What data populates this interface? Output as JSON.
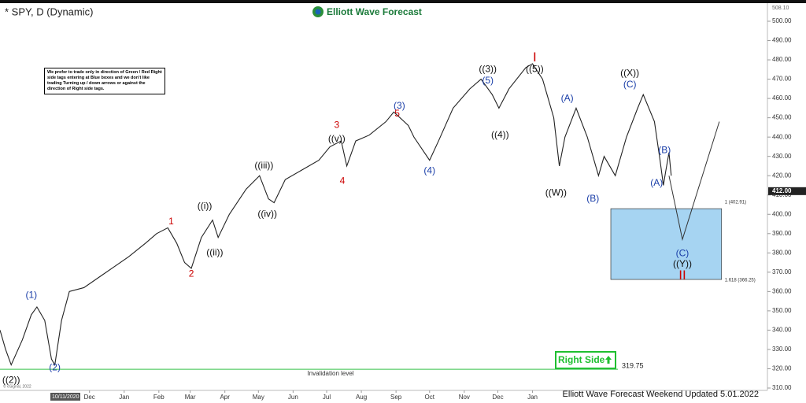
{
  "chart_data": {
    "type": "line",
    "title": "* SPY, D (Dynamic)",
    "brand": "Elliott Wave Forecast",
    "note": "We prefer to trade only in direction of Green / Red Right side tags entering at Blue boxes and we don't like trading Turning up / down arrows or against the direction of Right side tags.",
    "footer": "Elliott Wave Forecast Weekend Updated 5.01.2022",
    "copyright": "© eSignal, 2022",
    "date_badge": "10/11/2020",
    "right_side_tag": "Right Side",
    "xlim": [
      0,
      686
    ],
    "xticks": [
      {
        "value": 80,
        "label": "Dec"
      },
      {
        "value": 111,
        "label": "Jan"
      },
      {
        "value": 142,
        "label": "Feb"
      },
      {
        "value": 170,
        "label": "Mar"
      },
      {
        "value": 201,
        "label": "Apr"
      },
      {
        "value": 231,
        "label": "May"
      },
      {
        "value": 262,
        "label": "Jun"
      },
      {
        "value": 292,
        "label": "Jul"
      },
      {
        "value": 323,
        "label": "Aug"
      },
      {
        "value": 354,
        "label": "Sep"
      },
      {
        "value": 384,
        "label": "Oct"
      },
      {
        "value": 415,
        "label": "Nov"
      },
      {
        "value": 445,
        "label": "Dec"
      },
      {
        "value": 476,
        "label": "Jan"
      }
    ],
    "ylim": [
      310,
      500
    ],
    "yticks": [
      {
        "value": 310,
        "label": "310.00"
      },
      {
        "value": 320,
        "label": "320.00"
      },
      {
        "value": 330,
        "label": "330.00"
      },
      {
        "value": 340,
        "label": "340.00"
      },
      {
        "value": 350,
        "label": "350.00"
      },
      {
        "value": 360,
        "label": "360.00"
      },
      {
        "value": 370,
        "label": "370.00"
      },
      {
        "value": 380,
        "label": "380.00"
      },
      {
        "value": 390,
        "label": "390.00"
      },
      {
        "value": 400,
        "label": "400.00"
      },
      {
        "value": 410,
        "label": "410.00"
      },
      {
        "value": 420,
        "label": "420.00"
      },
      {
        "value": 430,
        "label": "430.00"
      },
      {
        "value": 440,
        "label": "440.00"
      },
      {
        "value": 450,
        "label": "450.00"
      },
      {
        "value": 460,
        "label": "460.00"
      },
      {
        "value": 470,
        "label": "470.00"
      },
      {
        "value": 480,
        "label": "480.00"
      },
      {
        "value": 490,
        "label": "490.00"
      },
      {
        "value": 500,
        "label": "500.00"
      }
    ],
    "top_price": {
      "value": 508.1,
      "label": "508.10"
    },
    "last_price": {
      "value": 412,
      "label": "412.00"
    },
    "series": [
      {
        "name": "SPY",
        "color": "#222222",
        "x": [
          0,
          5,
          10,
          20,
          28,
          33,
          40,
          46,
          49,
          55,
          62,
          75,
          90,
          100,
          115,
          130,
          140,
          150,
          158,
          165,
          171,
          180,
          190,
          195,
          205,
          220,
          232,
          240,
          245,
          255,
          270,
          285,
          295,
          305,
          310,
          318,
          330,
          345,
          352,
          365,
          370,
          384,
          392,
          405,
          420,
          430,
          440,
          446,
          455,
          470,
          476,
          485,
          495,
          500,
          505,
          515,
          525,
          535,
          540,
          550,
          560,
          570,
          575,
          585,
          590,
          593,
          595,
          598,
          600
        ],
        "values": [
          340,
          330,
          322,
          335,
          348,
          352,
          345,
          325,
          322,
          345,
          360,
          362,
          368,
          372,
          378,
          385,
          390,
          393,
          385,
          375,
          372,
          388,
          397,
          388,
          400,
          413,
          420,
          408,
          406,
          418,
          423,
          428,
          435,
          438,
          425,
          438,
          441,
          448,
          453,
          446,
          440,
          428,
          438,
          455,
          465,
          470,
          462,
          455,
          465,
          476,
          478,
          470,
          450,
          425,
          440,
          455,
          440,
          420,
          430,
          420,
          440,
          455,
          462,
          448,
          428,
          415,
          422,
          432,
          420
        ]
      }
    ],
    "projection": {
      "x": [
        598,
        610,
        643
      ],
      "values": [
        420,
        387,
        448
      ]
    },
    "blue_box": {
      "x": [
        546,
        645
      ],
      "top": {
        "value": 402.91,
        "label": "1 (402.91)"
      },
      "bottom": {
        "value": 366.25,
        "label": "1.618 (366.25)"
      }
    },
    "invalidation": {
      "value": 319.75,
      "label": "319.75",
      "text": "Invalidation level"
    },
    "wave_labels": [
      {
        "text": "((2))",
        "x": 10,
        "y": 314,
        "color": "#111111"
      },
      {
        "text": "(2)",
        "x": 49,
        "y": 320.5,
        "color": "#1a3ea8"
      },
      {
        "text": "(1)",
        "x": 28,
        "y": 358,
        "color": "#1a3ea8"
      },
      {
        "text": "1",
        "x": 153,
        "y": 396,
        "color": "#cc0000"
      },
      {
        "text": "2",
        "x": 171,
        "y": 369,
        "color": "#cc0000"
      },
      {
        "text": "((i))",
        "x": 183,
        "y": 404,
        "color": "#111111"
      },
      {
        "text": "((ii))",
        "x": 192,
        "y": 380,
        "color": "#111111"
      },
      {
        "text": "((iii))",
        "x": 236,
        "y": 425,
        "color": "#111111"
      },
      {
        "text": "((iv))",
        "x": 239,
        "y": 400,
        "color": "#111111"
      },
      {
        "text": "3",
        "x": 301,
        "y": 446,
        "color": "#cc0000"
      },
      {
        "text": "((v))",
        "x": 301,
        "y": 439,
        "color": "#111111"
      },
      {
        "text": "4",
        "x": 306,
        "y": 417,
        "color": "#cc0000"
      },
      {
        "text": "(3)",
        "x": 357,
        "y": 456,
        "color": "#1a3ea8"
      },
      {
        "text": "5",
        "x": 355,
        "y": 452,
        "color": "#cc0000"
      },
      {
        "text": "(4)",
        "x": 384,
        "y": 422.5,
        "color": "#1a3ea8"
      },
      {
        "text": "(5)",
        "x": 436,
        "y": 469,
        "color": "#1a3ea8"
      },
      {
        "text": "((3))",
        "x": 436,
        "y": 475,
        "color": "#111111"
      },
      {
        "text": "((4))",
        "x": 447,
        "y": 441,
        "color": "#111111"
      },
      {
        "text": "((5))",
        "x": 478,
        "y": 475,
        "color": "#111111"
      },
      {
        "text": "I",
        "x": 478,
        "y": 481,
        "color": "#cc0000"
      },
      {
        "text": "((W))",
        "x": 497,
        "y": 411,
        "color": "#111111"
      },
      {
        "text": "(A)",
        "x": 507,
        "y": 460,
        "color": "#1a3ea8"
      },
      {
        "text": "(B)",
        "x": 530,
        "y": 408,
        "color": "#1a3ea8"
      },
      {
        "text": "((X))",
        "x": 563,
        "y": 473,
        "color": "#111111"
      },
      {
        "text": "(C)",
        "x": 563,
        "y": 467,
        "color": "#1a3ea8"
      },
      {
        "text": "(B)",
        "x": 594,
        "y": 433,
        "color": "#1a3ea8"
      },
      {
        "text": "(A)",
        "x": 587,
        "y": 416,
        "color": "#1a3ea8"
      },
      {
        "text": "(C)",
        "x": 610,
        "y": 379.5,
        "color": "#1a3ea8"
      },
      {
        "text": "((Y))",
        "x": 610,
        "y": 374,
        "color": "#111111"
      },
      {
        "text": "II",
        "x": 610,
        "y": 368,
        "color": "#cc0000"
      }
    ]
  }
}
